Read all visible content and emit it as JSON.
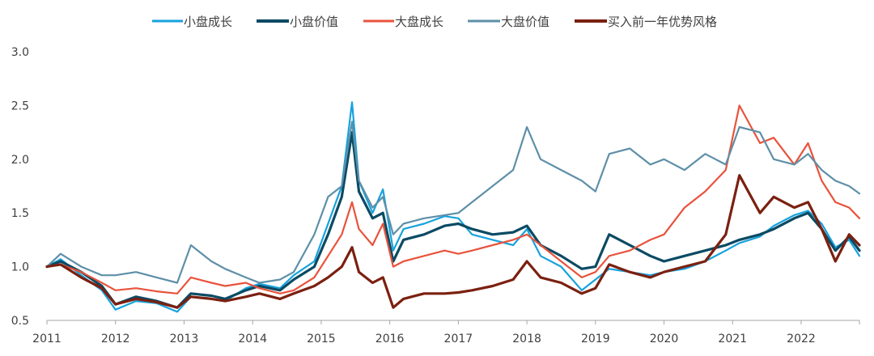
{
  "chart_data": {
    "type": "line",
    "title": "",
    "xlabel": "",
    "ylabel": "",
    "xlim": [
      2011.0,
      2022.85
    ],
    "ylim": [
      0.5,
      3.0
    ],
    "x_ticks": [
      "2011",
      "2012",
      "2013",
      "2014",
      "2015",
      "2016",
      "2017",
      "2018",
      "2019",
      "2020",
      "2021",
      "2022"
    ],
    "y_ticks": [
      "0.5",
      "1.0",
      "1.5",
      "2.0",
      "2.5",
      "3.0"
    ],
    "legend_position": "top",
    "grid": false,
    "series": [
      {
        "name": "小盘成长",
        "color": "#17a2dc",
        "x": [
          2011.0,
          2011.2,
          2011.5,
          2011.8,
          2012.0,
          2012.3,
          2012.6,
          2012.9,
          2013.1,
          2013.4,
          2013.6,
          2013.9,
          2014.1,
          2014.4,
          2014.6,
          2014.9,
          2015.1,
          2015.3,
          2015.45,
          2015.55,
          2015.75,
          2015.9,
          2016.05,
          2016.2,
          2016.5,
          2016.8,
          2017.0,
          2017.2,
          2017.5,
          2017.8,
          2018.0,
          2018.2,
          2018.5,
          2018.8,
          2019.0,
          2019.2,
          2019.5,
          2019.8,
          2020.0,
          2020.3,
          2020.6,
          2020.9,
          2021.1,
          2021.4,
          2021.6,
          2021.9,
          2022.1,
          2022.3,
          2022.5,
          2022.7,
          2022.85
        ],
        "y": [
          1.0,
          1.07,
          0.92,
          0.78,
          0.6,
          0.68,
          0.66,
          0.58,
          0.72,
          0.7,
          0.68,
          0.8,
          0.84,
          0.8,
          0.92,
          1.05,
          1.4,
          1.75,
          2.53,
          1.8,
          1.5,
          1.72,
          1.15,
          1.35,
          1.4,
          1.47,
          1.45,
          1.3,
          1.25,
          1.2,
          1.35,
          1.1,
          1.0,
          0.78,
          0.88,
          0.98,
          0.95,
          0.92,
          0.95,
          0.98,
          1.05,
          1.15,
          1.22,
          1.28,
          1.38,
          1.48,
          1.52,
          1.4,
          1.18,
          1.25,
          1.1
        ]
      },
      {
        "name": "小盘价值",
        "color": "#0b4a63",
        "x": [
          2011.0,
          2011.2,
          2011.5,
          2011.8,
          2012.0,
          2012.3,
          2012.6,
          2012.9,
          2013.1,
          2013.4,
          2013.6,
          2013.9,
          2014.1,
          2014.4,
          2014.6,
          2014.9,
          2015.1,
          2015.3,
          2015.45,
          2015.55,
          2015.75,
          2015.9,
          2016.05,
          2016.2,
          2016.5,
          2016.8,
          2017.0,
          2017.2,
          2017.5,
          2017.8,
          2018.0,
          2018.2,
          2018.5,
          2018.8,
          2019.0,
          2019.2,
          2019.5,
          2019.8,
          2020.0,
          2020.3,
          2020.6,
          2020.9,
          2021.1,
          2021.4,
          2021.6,
          2021.9,
          2022.1,
          2022.3,
          2022.5,
          2022.7,
          2022.85
        ],
        "y": [
          1.0,
          1.05,
          0.95,
          0.82,
          0.65,
          0.72,
          0.68,
          0.62,
          0.75,
          0.73,
          0.7,
          0.78,
          0.82,
          0.78,
          0.88,
          1.0,
          1.3,
          1.65,
          2.25,
          1.7,
          1.45,
          1.5,
          1.05,
          1.25,
          1.3,
          1.38,
          1.4,
          1.35,
          1.3,
          1.32,
          1.38,
          1.2,
          1.1,
          0.98,
          1.0,
          1.3,
          1.2,
          1.1,
          1.05,
          1.1,
          1.15,
          1.2,
          1.25,
          1.3,
          1.35,
          1.45,
          1.5,
          1.35,
          1.15,
          1.28,
          1.15
        ]
      },
      {
        "name": "大盘成长",
        "color": "#e8533c",
        "x": [
          2011.0,
          2011.2,
          2011.5,
          2011.8,
          2012.0,
          2012.3,
          2012.6,
          2012.9,
          2013.1,
          2013.4,
          2013.6,
          2013.9,
          2014.1,
          2014.4,
          2014.6,
          2014.9,
          2015.1,
          2015.3,
          2015.45,
          2015.55,
          2015.75,
          2015.9,
          2016.05,
          2016.2,
          2016.5,
          2016.8,
          2017.0,
          2017.2,
          2017.5,
          2017.8,
          2018.0,
          2018.2,
          2018.5,
          2018.8,
          2019.0,
          2019.2,
          2019.5,
          2019.8,
          2020.0,
          2020.3,
          2020.6,
          2020.9,
          2021.1,
          2021.4,
          2021.6,
          2021.9,
          2022.1,
          2022.3,
          2022.5,
          2022.7,
          2022.85
        ],
        "y": [
          1.0,
          1.02,
          0.95,
          0.85,
          0.78,
          0.8,
          0.77,
          0.75,
          0.9,
          0.85,
          0.82,
          0.85,
          0.8,
          0.75,
          0.78,
          0.9,
          1.1,
          1.3,
          1.6,
          1.35,
          1.2,
          1.4,
          1.0,
          1.05,
          1.1,
          1.15,
          1.12,
          1.15,
          1.2,
          1.25,
          1.3,
          1.2,
          1.05,
          0.9,
          0.95,
          1.1,
          1.15,
          1.25,
          1.3,
          1.55,
          1.7,
          1.9,
          2.5,
          2.15,
          2.2,
          1.95,
          2.15,
          1.8,
          1.6,
          1.55,
          1.45
        ]
      },
      {
        "name": "大盘价值",
        "color": "#5e8fa8",
        "x": [
          2011.0,
          2011.2,
          2011.5,
          2011.8,
          2012.0,
          2012.3,
          2012.6,
          2012.9,
          2013.1,
          2013.4,
          2013.6,
          2013.9,
          2014.1,
          2014.4,
          2014.6,
          2014.9,
          2015.1,
          2015.3,
          2015.45,
          2015.55,
          2015.75,
          2015.9,
          2016.05,
          2016.2,
          2016.5,
          2016.8,
          2017.0,
          2017.2,
          2017.5,
          2017.8,
          2018.0,
          2018.2,
          2018.5,
          2018.8,
          2019.0,
          2019.2,
          2019.5,
          2019.8,
          2020.0,
          2020.3,
          2020.6,
          2020.9,
          2021.1,
          2021.4,
          2021.6,
          2021.9,
          2022.1,
          2022.3,
          2022.5,
          2022.7,
          2022.85
        ],
        "y": [
          1.0,
          1.12,
          1.0,
          0.92,
          0.92,
          0.95,
          0.9,
          0.85,
          1.2,
          1.05,
          0.98,
          0.9,
          0.85,
          0.88,
          0.95,
          1.3,
          1.65,
          1.75,
          2.35,
          1.8,
          1.55,
          1.65,
          1.3,
          1.4,
          1.45,
          1.48,
          1.5,
          1.6,
          1.75,
          1.9,
          2.3,
          2.0,
          1.9,
          1.8,
          1.7,
          2.05,
          2.1,
          1.95,
          2.0,
          1.9,
          2.05,
          1.95,
          2.3,
          2.25,
          2.0,
          1.95,
          2.05,
          1.9,
          1.8,
          1.75,
          1.68
        ]
      },
      {
        "name": "买入前一年优势风格",
        "color": "#7b2010",
        "x": [
          2011.0,
          2011.2,
          2011.5,
          2011.8,
          2012.0,
          2012.3,
          2012.6,
          2012.9,
          2013.1,
          2013.4,
          2013.6,
          2013.9,
          2014.1,
          2014.4,
          2014.6,
          2014.9,
          2015.1,
          2015.3,
          2015.45,
          2015.55,
          2015.75,
          2015.9,
          2016.05,
          2016.2,
          2016.5,
          2016.8,
          2017.0,
          2017.2,
          2017.5,
          2017.8,
          2018.0,
          2018.2,
          2018.5,
          2018.8,
          2019.0,
          2019.2,
          2019.5,
          2019.8,
          2020.0,
          2020.3,
          2020.6,
          2020.9,
          2021.1,
          2021.4,
          2021.6,
          2021.9,
          2022.1,
          2022.3,
          2022.5,
          2022.7,
          2022.85
        ],
        "y": [
          1.0,
          1.02,
          0.9,
          0.8,
          0.65,
          0.7,
          0.67,
          0.62,
          0.72,
          0.7,
          0.68,
          0.72,
          0.75,
          0.7,
          0.75,
          0.82,
          0.9,
          1.0,
          1.18,
          0.95,
          0.85,
          0.9,
          0.62,
          0.7,
          0.75,
          0.75,
          0.76,
          0.78,
          0.82,
          0.88,
          1.05,
          0.9,
          0.85,
          0.75,
          0.8,
          1.02,
          0.95,
          0.9,
          0.95,
          1.0,
          1.05,
          1.3,
          1.85,
          1.5,
          1.65,
          1.55,
          1.6,
          1.35,
          1.05,
          1.3,
          1.2
        ]
      }
    ]
  }
}
